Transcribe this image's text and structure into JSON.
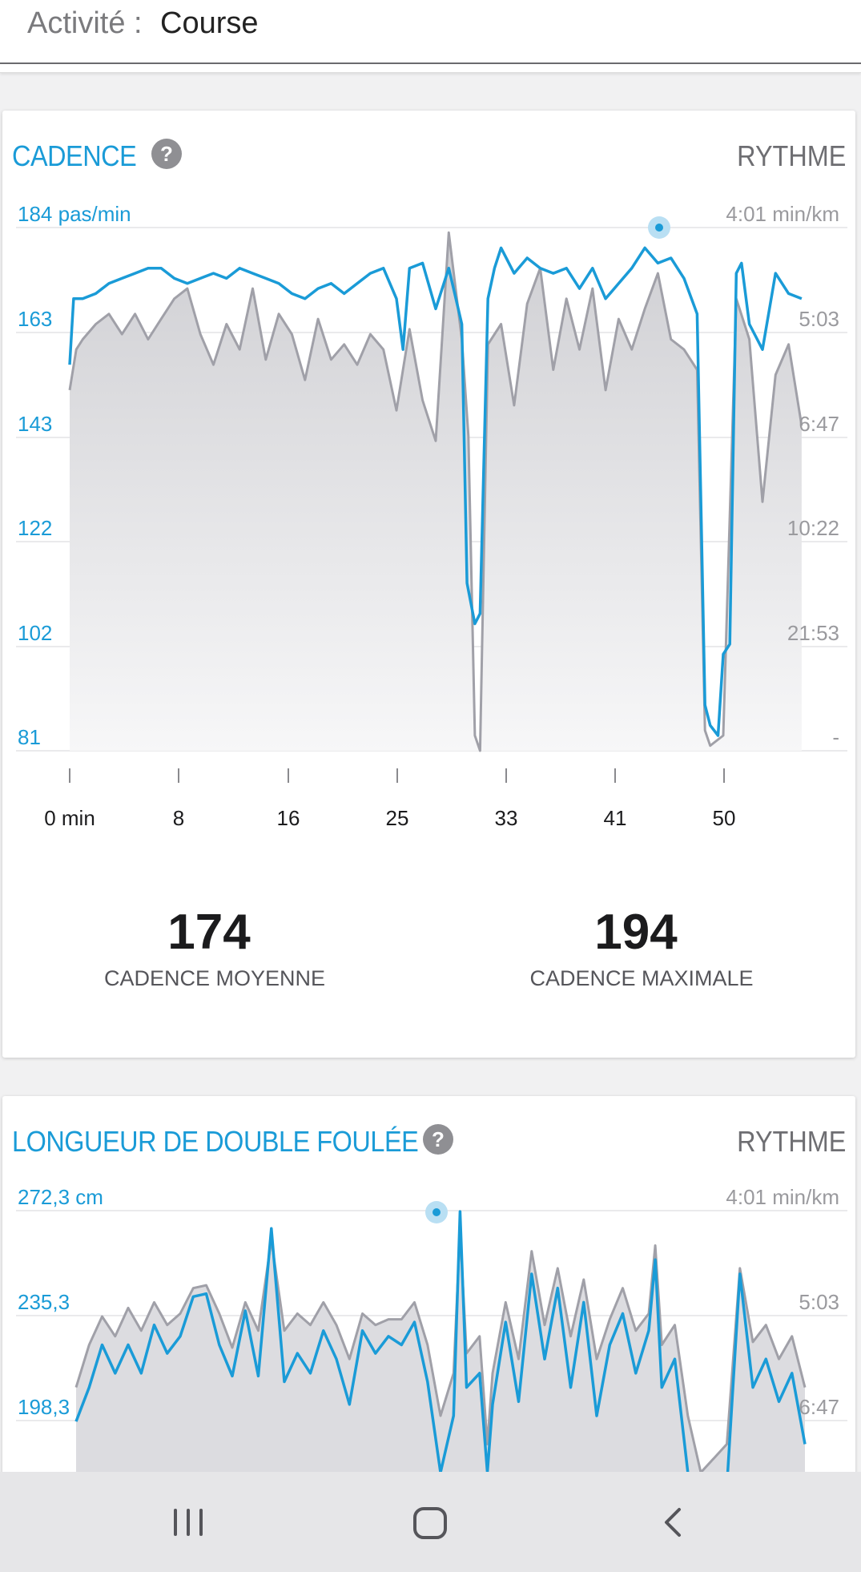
{
  "header": {
    "activity_label": "Activité :",
    "activity_value": "Course"
  },
  "cadence_card": {
    "title": "CADENCE",
    "right_label": "RYTHME",
    "y_left_ticks": [
      "184 pas/min",
      "163",
      "143",
      "122",
      "102",
      "81"
    ],
    "y_right_ticks": [
      "4:01 min/km",
      "5:03",
      "6:47",
      "10:22",
      "21:53",
      "-"
    ],
    "x_ticks": [
      "0 min",
      "8",
      "16",
      "25",
      "33",
      "41",
      "50"
    ],
    "stats": [
      {
        "value": "174",
        "label": "CADENCE MOYENNE"
      },
      {
        "value": "194",
        "label": "CADENCE MAXIMALE"
      }
    ]
  },
  "stride_card": {
    "title": "LONGUEUR DE DOUBLE FOULÉE",
    "right_label": "RYTHME",
    "y_left_ticks": [
      "272,3 cm",
      "235,3",
      "198,3"
    ],
    "y_right_ticks": [
      "4:01 min/km",
      "5:03",
      "6:47"
    ]
  },
  "chart_data": [
    {
      "type": "line",
      "title": "CADENCE",
      "x_unit": "min",
      "x_ticks": [
        0,
        8,
        16,
        25,
        33,
        41,
        50
      ],
      "ylabel": "pas/min",
      "ylim": [
        81,
        184
      ],
      "y_ticks": [
        184,
        163,
        143,
        122,
        102,
        81
      ],
      "y2_ticks": [
        "4:01 min/km",
        "5:03",
        "6:47",
        "10:22",
        "21:53",
        "-"
      ],
      "series": [
        {
          "color": "#1a9bd7",
          "points": [
            [
              0,
              157
            ],
            [
              0.3,
              170
            ],
            [
              1,
              170
            ],
            [
              2,
              171
            ],
            [
              3,
              173
            ],
            [
              4,
              174
            ],
            [
              5,
              175
            ],
            [
              6,
              176
            ],
            [
              7,
              176
            ],
            [
              8,
              174
            ],
            [
              9,
              173
            ],
            [
              10,
              174
            ],
            [
              11,
              175
            ],
            [
              12,
              174
            ],
            [
              13,
              176
            ],
            [
              14,
              175
            ],
            [
              15,
              174
            ],
            [
              16,
              173
            ],
            [
              17,
              171
            ],
            [
              18,
              170
            ],
            [
              19,
              172
            ],
            [
              20,
              173
            ],
            [
              21,
              171
            ],
            [
              22,
              173
            ],
            [
              23,
              175
            ],
            [
              24,
              176
            ],
            [
              25,
              170
            ],
            [
              25.5,
              160
            ],
            [
              26,
              176
            ],
            [
              27,
              177
            ],
            [
              28,
              168
            ],
            [
              29,
              176
            ],
            [
              30,
              165
            ],
            [
              30.4,
              114
            ],
            [
              31,
              106
            ],
            [
              31.4,
              108
            ],
            [
              32,
              170
            ],
            [
              32.5,
              176
            ],
            [
              33,
              180
            ],
            [
              34,
              175
            ],
            [
              35,
              178
            ],
            [
              36,
              176
            ],
            [
              37,
              175
            ],
            [
              38,
              176
            ],
            [
              39,
              172
            ],
            [
              40,
              176
            ],
            [
              41,
              170
            ],
            [
              42,
              173
            ],
            [
              43,
              176
            ],
            [
              44,
              180
            ],
            [
              45,
              177
            ],
            [
              46,
              178
            ],
            [
              47,
              174
            ],
            [
              48,
              167
            ],
            [
              48.6,
              90
            ],
            [
              49,
              86
            ],
            [
              49.6,
              84
            ],
            [
              50,
              100
            ],
            [
              50.5,
              102
            ],
            [
              51,
              175
            ],
            [
              51.4,
              177
            ],
            [
              52,
              165
            ],
            [
              53,
              160
            ],
            [
              54,
              175
            ],
            [
              55,
              171
            ],
            [
              56,
              170
            ]
          ]
        },
        {
          "color": "#a0a0a8",
          "points": [
            [
              0,
              152
            ],
            [
              0.5,
              160
            ],
            [
              1,
              162
            ],
            [
              2,
              165
            ],
            [
              3,
              167
            ],
            [
              4,
              163
            ],
            [
              5,
              167
            ],
            [
              6,
              162
            ],
            [
              7,
              166
            ],
            [
              8,
              170
            ],
            [
              9,
              172
            ],
            [
              10,
              163
            ],
            [
              11,
              157
            ],
            [
              12,
              165
            ],
            [
              13,
              160
            ],
            [
              14,
              172
            ],
            [
              15,
              158
            ],
            [
              16,
              167
            ],
            [
              17,
              163
            ],
            [
              18,
              154
            ],
            [
              19,
              166
            ],
            [
              20,
              158
            ],
            [
              21,
              161
            ],
            [
              22,
              157
            ],
            [
              23,
              163
            ],
            [
              24,
              160
            ],
            [
              25,
              148
            ],
            [
              26,
              164
            ],
            [
              27,
              150
            ],
            [
              28,
              142
            ],
            [
              29,
              183
            ],
            [
              30,
              162
            ],
            [
              30.5,
              143
            ],
            [
              31,
              84
            ],
            [
              31.4,
              81
            ],
            [
              32,
              161
            ],
            [
              33,
              165
            ],
            [
              34,
              149
            ],
            [
              35,
              169
            ],
            [
              36,
              176
            ],
            [
              37,
              156
            ],
            [
              38,
              170
            ],
            [
              39,
              160
            ],
            [
              40,
              172
            ],
            [
              41,
              152
            ],
            [
              42,
              166
            ],
            [
              43,
              160
            ],
            [
              44,
              168
            ],
            [
              45,
              175
            ],
            [
              46,
              162
            ],
            [
              47,
              160
            ],
            [
              48,
              156
            ],
            [
              48.6,
              85
            ],
            [
              49,
              82
            ],
            [
              50,
              84
            ],
            [
              51,
              170
            ],
            [
              52,
              162
            ],
            [
              53,
              130
            ],
            [
              54,
              155
            ],
            [
              55,
              161
            ],
            [
              56,
              145
            ]
          ]
        }
      ]
    },
    {
      "type": "line",
      "title": "LONGUEUR DE DOUBLE FOULÉE",
      "ylabel": "cm",
      "y_ticks": [
        272.3,
        235.3,
        198.3
      ],
      "y2_ticks": [
        "4:01 min/km",
        "5:03",
        "6:47"
      ],
      "series": [
        {
          "color": "#1a9bd7",
          "points": [
            [
              0,
              198
            ],
            [
              1,
              210
            ],
            [
              2,
              225
            ],
            [
              3,
              215
            ],
            [
              4,
              225
            ],
            [
              5,
              215
            ],
            [
              6,
              232
            ],
            [
              7,
              222
            ],
            [
              8,
              228
            ],
            [
              9,
              242
            ],
            [
              10,
              243
            ],
            [
              11,
              225
            ],
            [
              12,
              214
            ],
            [
              13,
              237
            ],
            [
              14,
              214
            ],
            [
              15,
              266
            ],
            [
              16,
              212
            ],
            [
              17,
              222
            ],
            [
              18,
              215
            ],
            [
              19,
              230
            ],
            [
              20,
              220
            ],
            [
              21,
              204
            ],
            [
              22,
              230
            ],
            [
              23,
              222
            ],
            [
              24,
              228
            ],
            [
              25,
              225
            ],
            [
              26,
              233
            ],
            [
              27,
              212
            ],
            [
              28,
              180
            ],
            [
              29,
              200
            ],
            [
              29.5,
              272
            ],
            [
              30,
              210
            ],
            [
              31,
              215
            ],
            [
              31.6,
              180
            ],
            [
              32,
              204
            ],
            [
              33,
              233
            ],
            [
              34,
              205
            ],
            [
              35,
              250
            ],
            [
              36,
              220
            ],
            [
              37,
              245
            ],
            [
              38,
              210
            ],
            [
              39,
              240
            ],
            [
              40,
              200
            ],
            [
              41,
              225
            ],
            [
              42,
              236
            ],
            [
              43,
              215
            ],
            [
              44,
              230
            ],
            [
              44.5,
              255
            ],
            [
              45,
              210
            ],
            [
              46,
              220
            ],
            [
              47,
              180
            ],
            [
              48,
              165
            ],
            [
              49,
              170
            ],
            [
              50,
              175
            ],
            [
              51,
              250
            ],
            [
              52,
              210
            ],
            [
              53,
              220
            ],
            [
              54,
              205
            ],
            [
              55,
              215
            ],
            [
              56,
              190
            ]
          ]
        },
        {
          "color": "#a0a0a8",
          "points": [
            [
              0,
              210
            ],
            [
              1,
              225
            ],
            [
              2,
              235
            ],
            [
              3,
              228
            ],
            [
              4,
              238
            ],
            [
              5,
              230
            ],
            [
              6,
              240
            ],
            [
              7,
              232
            ],
            [
              8,
              236
            ],
            [
              9,
              245
            ],
            [
              10,
              246
            ],
            [
              11,
              236
            ],
            [
              12,
              224
            ],
            [
              13,
              240
            ],
            [
              14,
              230
            ],
            [
              15,
              262
            ],
            [
              16,
              230
            ],
            [
              17,
              236
            ],
            [
              18,
              232
            ],
            [
              19,
              240
            ],
            [
              20,
              232
            ],
            [
              21,
              220
            ],
            [
              22,
              236
            ],
            [
              23,
              232
            ],
            [
              24,
              234
            ],
            [
              25,
              234
            ],
            [
              26,
              240
            ],
            [
              27,
              225
            ],
            [
              28,
              200
            ],
            [
              29,
              215
            ],
            [
              29.5,
              265
            ],
            [
              30,
              222
            ],
            [
              31,
              228
            ],
            [
              31.6,
              190
            ],
            [
              32,
              215
            ],
            [
              33,
              240
            ],
            [
              34,
              220
            ],
            [
              35,
              258
            ],
            [
              36,
              232
            ],
            [
              37,
              252
            ],
            [
              38,
              228
            ],
            [
              39,
              248
            ],
            [
              40,
              220
            ],
            [
              41,
              234
            ],
            [
              42,
              245
            ],
            [
              43,
              230
            ],
            [
              44,
              236
            ],
            [
              44.5,
              260
            ],
            [
              45,
              225
            ],
            [
              46,
              232
            ],
            [
              47,
              200
            ],
            [
              48,
              180
            ],
            [
              49,
              185
            ],
            [
              50,
              190
            ],
            [
              51,
              252
            ],
            [
              52,
              226
            ],
            [
              53,
              232
            ],
            [
              54,
              220
            ],
            [
              55,
              228
            ],
            [
              56,
              210
            ]
          ]
        }
      ]
    }
  ],
  "navbar": {
    "icons": [
      "recent-apps-icon",
      "home-icon",
      "back-icon"
    ]
  }
}
